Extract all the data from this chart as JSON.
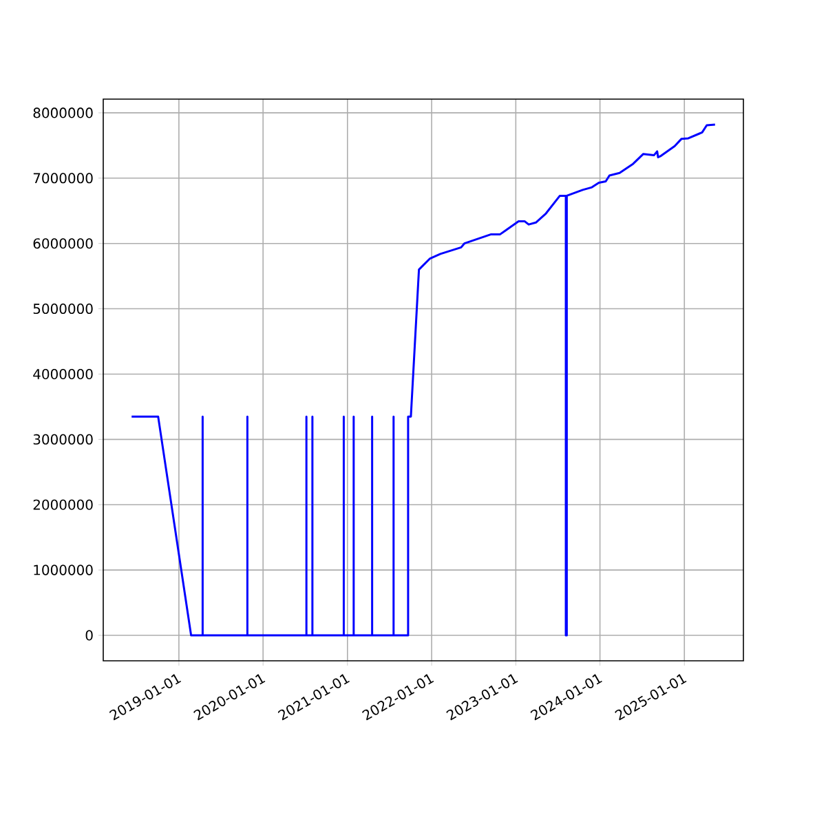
{
  "chart_data": {
    "type": "line",
    "color": "#0000ff",
    "marker": "none",
    "line_style": "solid",
    "grid": true,
    "x": [
      "2018-06-10",
      "2018-10-03",
      "2019-02-23",
      "2019-04-14",
      "2019-04-14",
      "2019-04-14",
      "2019-10-25",
      "2019-10-25",
      "2019-10-25",
      "2020-07-07",
      "2020-07-07",
      "2020-07-07",
      "2020-08-02",
      "2020-08-02",
      "2020-08-02",
      "2020-12-16",
      "2020-12-16",
      "2020-12-16",
      "2021-01-28",
      "2021-01-28",
      "2021-01-28",
      "2021-04-18",
      "2021-04-18",
      "2021-04-18",
      "2021-07-20",
      "2021-07-20",
      "2021-07-20",
      "2021-09-21",
      "2021-09-21",
      "2021-10-03",
      "2021-11-07",
      "2021-11-21",
      "2021-12-25",
      "2022-02-08",
      "2022-05-09",
      "2022-05-23",
      "2022-09-16",
      "2022-10-25",
      "2022-11-18",
      "2023-01-13",
      "2023-02-08",
      "2023-02-26",
      "2023-03-29",
      "2023-05-12",
      "2023-07-11",
      "2023-08-06",
      "2023-08-06",
      "2023-08-10",
      "2023-08-10",
      "2023-10-18",
      "2023-11-27",
      "2023-12-27",
      "2024-01-26",
      "2024-02-11",
      "2024-03-26",
      "2024-05-24",
      "2024-07-07",
      "2024-08-22",
      "2024-09-05",
      "2024-09-09",
      "2024-09-21",
      "2024-11-20",
      "2024-12-19",
      "2025-01-18",
      "2025-03-19",
      "2025-04-08",
      "2025-05-14"
    ],
    "values": [
      3350000,
      3350000,
      0,
      0,
      3350000,
      0,
      0,
      3350000,
      0,
      0,
      3350000,
      0,
      0,
      3350000,
      0,
      0,
      3350000,
      0,
      0,
      3350000,
      0,
      0,
      3350000,
      0,
      0,
      3350000,
      0,
      0,
      3350000,
      3350000,
      5600000,
      5650000,
      5770000,
      5840000,
      5940000,
      6000000,
      6140000,
      6140000,
      6200000,
      6340000,
      6340000,
      6290000,
      6320000,
      6460000,
      6730000,
      6730000,
      0,
      0,
      6730000,
      6820000,
      6860000,
      6930000,
      6950000,
      7040000,
      7080000,
      7220000,
      7370000,
      7350000,
      7410000,
      7320000,
      7340000,
      7490000,
      7600000,
      7610000,
      7700000,
      7810000,
      7820000
    ],
    "xlim": [
      "2018-02-07",
      "2025-09-14"
    ],
    "xticks": [
      "2019-01-01",
      "2020-01-01",
      "2021-01-01",
      "2022-01-01",
      "2023-01-01",
      "2024-01-01",
      "2025-01-01"
    ],
    "ylim": [
      -390000,
      8210000
    ],
    "yticks": [
      0,
      1000000,
      2000000,
      3000000,
      4000000,
      5000000,
      6000000,
      7000000,
      8000000
    ]
  }
}
